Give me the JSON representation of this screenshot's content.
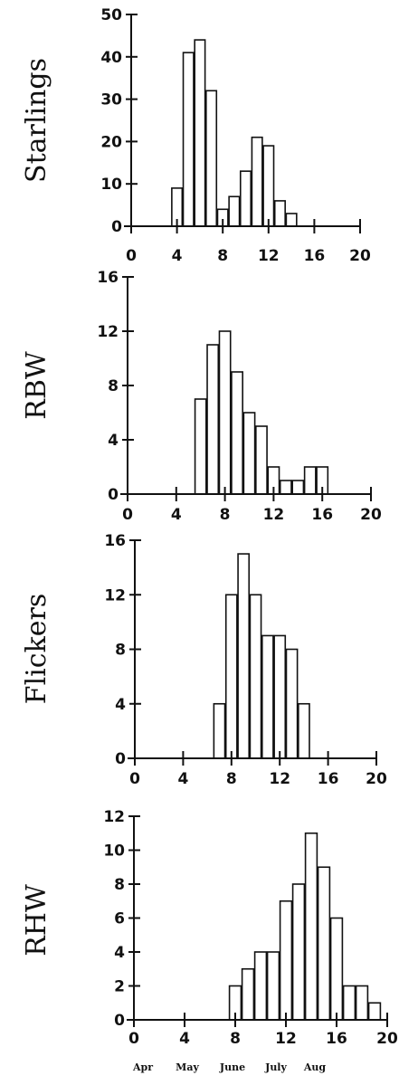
{
  "chart_data": [
    {
      "type": "bar",
      "ylabel": "Starlings",
      "xlim": [
        0,
        20
      ],
      "ylim": [
        0,
        50
      ],
      "xticks": [
        "0",
        "4",
        "8",
        "12",
        "16",
        "20"
      ],
      "yticks": [
        "0",
        "10",
        "20",
        "30",
        "40",
        "50"
      ],
      "x": [
        4,
        5,
        6,
        7,
        8,
        9,
        10,
        11,
        12,
        13,
        14
      ],
      "values": [
        9,
        41,
        44,
        32,
        4,
        7,
        13,
        21,
        19,
        6,
        3
      ]
    },
    {
      "type": "bar",
      "ylabel": "RBW",
      "xlim": [
        0,
        20
      ],
      "ylim": [
        0,
        16
      ],
      "xticks": [
        "0",
        "4",
        "8",
        "12",
        "16",
        "20"
      ],
      "yticks": [
        "0",
        "4",
        "8",
        "12",
        "16"
      ],
      "x": [
        6,
        7,
        8,
        9,
        10,
        11,
        12,
        13,
        14,
        15,
        16
      ],
      "values": [
        7,
        11,
        12,
        9,
        6,
        5,
        2,
        1,
        1,
        2,
        2
      ]
    },
    {
      "type": "bar",
      "ylabel": "Flickers",
      "xlim": [
        0,
        20
      ],
      "ylim": [
        0,
        16
      ],
      "xticks": [
        "0",
        "4",
        "8",
        "12",
        "16",
        "20"
      ],
      "yticks": [
        "0",
        "4",
        "8",
        "12",
        "16"
      ],
      "x": [
        7,
        8,
        9,
        10,
        11,
        12,
        13,
        14
      ],
      "values": [
        4,
        12,
        15,
        12,
        9,
        9,
        8,
        4
      ]
    },
    {
      "type": "bar",
      "ylabel": "RHW",
      "xlim": [
        0,
        20
      ],
      "ylim": [
        0,
        12
      ],
      "xticks": [
        "0",
        "4",
        "8",
        "12",
        "16",
        "20"
      ],
      "yticks": [
        "0",
        "2",
        "4",
        "6",
        "8",
        "10",
        "12"
      ],
      "x": [
        8,
        9,
        10,
        11,
        12,
        13,
        14,
        15,
        16,
        17,
        18,
        19
      ],
      "values": [
        2,
        3,
        4,
        4,
        7,
        8,
        11,
        9,
        6,
        2,
        2,
        1
      ],
      "month_labels": [
        "Apr",
        "May",
        "June",
        "July",
        "Aug"
      ]
    }
  ]
}
